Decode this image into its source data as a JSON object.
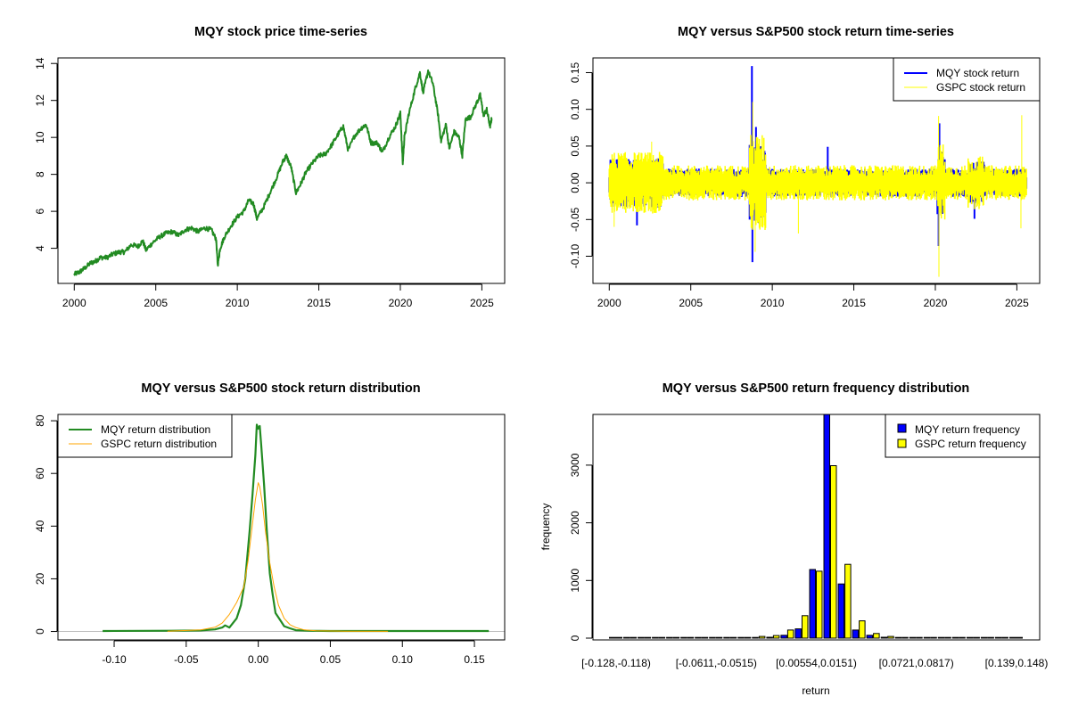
{
  "chart_data": [
    {
      "id": "price",
      "type": "line",
      "title": "MQY stock price time-series",
      "xlabel": "",
      "ylabel": "",
      "xlim": [
        1999.0,
        2026.4
      ],
      "ylim": [
        2.1,
        14.3
      ],
      "x_ticks": [
        2000,
        2005,
        2010,
        2015,
        2020,
        2025
      ],
      "x_tick_labels": [
        "2000",
        "2005",
        "2010",
        "2015",
        "2020",
        "2025"
      ],
      "y_ticks": [
        4,
        6,
        8,
        10,
        12,
        14
      ],
      "y_tick_labels": [
        "4",
        "6",
        "8",
        "10",
        "12",
        "14"
      ],
      "grid": false,
      "series": [
        {
          "name": "MQY",
          "color": "#228B22",
          "x": [
            2000.0,
            2000.3,
            2000.6,
            2001.0,
            2001.3,
            2001.6,
            2002.0,
            2002.4,
            2002.8,
            2003.1,
            2003.5,
            2003.9,
            2004.2,
            2004.4,
            2004.8,
            2005.2,
            2005.6,
            2006.0,
            2006.4,
            2006.8,
            2007.2,
            2007.6,
            2008.0,
            2008.4,
            2008.7,
            2008.8,
            2008.95,
            2009.2,
            2009.6,
            2010.0,
            2010.4,
            2010.7,
            2011.0,
            2011.2,
            2011.6,
            2012.0,
            2012.4,
            2012.8,
            2013.0,
            2013.3,
            2013.6,
            2013.9,
            2014.2,
            2014.6,
            2015.0,
            2015.4,
            2015.8,
            2016.2,
            2016.5,
            2016.8,
            2017.2,
            2017.6,
            2017.9,
            2018.2,
            2018.6,
            2018.9,
            2019.3,
            2019.7,
            2020.0,
            2020.15,
            2020.25,
            2020.5,
            2020.9,
            2021.2,
            2021.4,
            2021.7,
            2022.0,
            2022.3,
            2022.5,
            2022.8,
            2023.0,
            2023.3,
            2023.6,
            2023.8,
            2024.0,
            2024.3,
            2024.7,
            2024.9,
            2025.1,
            2025.3,
            2025.5,
            2025.6
          ],
          "y": [
            2.6,
            2.7,
            2.9,
            3.2,
            3.3,
            3.5,
            3.5,
            3.7,
            3.8,
            3.8,
            4.2,
            4.1,
            4.4,
            3.9,
            4.3,
            4.6,
            4.8,
            4.9,
            4.7,
            5.0,
            5.1,
            4.9,
            5.1,
            5.0,
            4.5,
            3.1,
            4.0,
            4.6,
            5.2,
            5.7,
            6.0,
            6.6,
            6.4,
            5.6,
            6.2,
            7.0,
            7.8,
            8.7,
            9.0,
            8.4,
            7.0,
            7.5,
            8.1,
            8.6,
            9.0,
            9.1,
            9.6,
            10.2,
            10.6,
            9.3,
            10.1,
            10.5,
            10.7,
            9.7,
            9.7,
            9.2,
            10.0,
            10.6,
            11.3,
            8.6,
            10.0,
            11.2,
            12.6,
            13.5,
            12.4,
            13.6,
            12.9,
            11.3,
            9.8,
            10.7,
            9.4,
            10.3,
            10.0,
            9.0,
            11.0,
            11.1,
            11.9,
            12.3,
            11.2,
            11.5,
            10.6,
            11.0
          ]
        }
      ]
    },
    {
      "id": "returns",
      "type": "line",
      "title": "MQY versus S&P500 stock return time-series",
      "xlabel": "",
      "ylabel": "",
      "xlim": [
        1999.0,
        2026.4
      ],
      "ylim": [
        -0.137,
        0.17
      ],
      "x_ticks": [
        2000,
        2005,
        2010,
        2015,
        2020,
        2025
      ],
      "x_tick_labels": [
        "2000",
        "2005",
        "2010",
        "2015",
        "2020",
        "2025"
      ],
      "y_ticks": [
        -0.1,
        -0.05,
        0.0,
        0.05,
        0.1,
        0.15
      ],
      "y_tick_labels": [
        "-0.10",
        "-0.05",
        "0.00",
        "0.05",
        "0.10",
        "0.15"
      ],
      "grid": false,
      "legend": {
        "position": "top-right",
        "entries": [
          "MQY stock return",
          "GSPC stock return"
        ]
      },
      "series": [
        {
          "name": "MQY stock return",
          "color": "#0000FF",
          "spikes": [
            {
              "x": 2001.7,
              "y": -0.058
            },
            {
              "x": 2008.75,
              "y": 0.159
            },
            {
              "x": 2008.78,
              "y": -0.108
            },
            {
              "x": 2009.0,
              "y": 0.076
            },
            {
              "x": 2009.2,
              "y": -0.055
            },
            {
              "x": 2013.4,
              "y": 0.049
            },
            {
              "x": 2020.2,
              "y": -0.086
            },
            {
              "x": 2020.25,
              "y": 0.081
            },
            {
              "x": 2022.4,
              "y": -0.049
            }
          ],
          "typical_amplitude": 0.02
        },
        {
          "name": "GSPC stock return",
          "color": "#FFFF00",
          "spikes": [
            {
              "x": 2000.3,
              "y": -0.06
            },
            {
              "x": 2002.6,
              "y": 0.056
            },
            {
              "x": 2008.8,
              "y": 0.11
            },
            {
              "x": 2008.95,
              "y": -0.094
            },
            {
              "x": 2011.6,
              "y": -0.069
            },
            {
              "x": 2020.2,
              "y": 0.091
            },
            {
              "x": 2020.22,
              "y": -0.128
            },
            {
              "x": 2025.3,
              "y": 0.092
            },
            {
              "x": 2025.25,
              "y": -0.062
            }
          ],
          "typical_amplitude": 0.025
        }
      ]
    },
    {
      "id": "density",
      "type": "line",
      "title": "MQY versus S&P500 stock return distribution",
      "xlabel": "",
      "ylabel": "",
      "xlim": [
        -0.139,
        0.171
      ],
      "ylim": [
        -3.2,
        82.4
      ],
      "x_ticks": [
        -0.1,
        -0.05,
        0.0,
        0.05,
        0.1,
        0.15
      ],
      "x_tick_labels": [
        "-0.10",
        "-0.05",
        "0.00",
        "0.05",
        "0.10",
        "0.15"
      ],
      "y_ticks": [
        0,
        20,
        40,
        60,
        80
      ],
      "y_tick_labels": [
        "0",
        "20",
        "40",
        "60",
        "80"
      ],
      "grid": false,
      "baseline_color": "#BEBEBE",
      "legend": {
        "position": "top-left",
        "entries": [
          "MQY return distribution",
          "GSPC return distribution"
        ]
      },
      "series": [
        {
          "name": "MQY return distribution",
          "color": "#228B22",
          "x": [
            -0.108,
            -0.06,
            -0.04,
            -0.03,
            -0.025,
            -0.023,
            -0.02,
            -0.015,
            -0.012,
            -0.009,
            -0.006,
            -0.004,
            -0.002,
            -0.001,
            0.0,
            0.001,
            0.002,
            0.004,
            0.006,
            0.008,
            0.01,
            0.012,
            0.015,
            0.018,
            0.022,
            0.026,
            0.035,
            0.05,
            0.1,
            0.16
          ],
          "y": [
            0.2,
            0.3,
            0.4,
            0.8,
            1.5,
            2.3,
            1.5,
            5.0,
            10.0,
            20.0,
            38.0,
            52.0,
            67.0,
            78.5,
            77.0,
            78.0,
            71.0,
            56.0,
            38.0,
            22.0,
            14.0,
            7.0,
            4.5,
            2.0,
            1.2,
            0.5,
            0.3,
            0.2,
            0.2,
            0.2
          ]
        },
        {
          "name": "GSPC return distribution",
          "color": "#FFA500",
          "x": [
            -0.063,
            -0.04,
            -0.03,
            -0.025,
            -0.02,
            -0.015,
            -0.01,
            -0.007,
            -0.004,
            -0.002,
            0.0,
            0.001,
            0.003,
            0.005,
            0.008,
            0.011,
            0.014,
            0.018,
            0.022,
            0.026,
            0.032,
            0.04,
            0.06,
            0.09
          ],
          "y": [
            0.1,
            0.6,
            1.6,
            3.2,
            6.5,
            11.0,
            17.0,
            27.0,
            41.0,
            50.0,
            56.5,
            55.0,
            48.0,
            38.0,
            26.0,
            17.0,
            10.0,
            5.0,
            2.6,
            1.5,
            0.6,
            0.3,
            0.1,
            0.05
          ]
        }
      ]
    },
    {
      "id": "histogram",
      "type": "bar",
      "title": "MQY versus S&P500 return frequency distribution",
      "xlabel": "return",
      "ylabel": "frequency",
      "ylim": [
        0,
        3880
      ],
      "y_ticks": [
        0,
        1000,
        2000,
        3000
      ],
      "y_tick_labels": [
        "0",
        "1000",
        "2000",
        "3000"
      ],
      "grid": false,
      "legend": {
        "position": "top-right",
        "entries": [
          "MQY return frequency",
          "GSPC return frequency"
        ]
      },
      "categories": [
        "[-0.128,-0.118)",
        "[-0.118,-0.109)",
        "[-0.109,-0.0995)",
        "[-0.0995,-0.0899)",
        "[-0.0899,-0.0803)",
        "[-0.0803,-0.0707)",
        "[-0.0707,-0.0611)",
        "[-0.0611,-0.0515)",
        "[-0.0515,-0.0419)",
        "[-0.0419,-0.0324)",
        "[-0.0324,-0.0228)",
        "[-0.0228,-0.0132)",
        "[-0.0132,-0.00362)",
        "[-0.00362,0.00554)",
        "[0.00554,0.0151)",
        "[0.0151,0.0247)",
        "[0.0247,0.0343)",
        "[0.0343,0.0438)",
        "[0.0438,0.0534)",
        "[0.0534,0.063)",
        "[0.063,0.0721)",
        "[0.0721,0.0817)",
        "[0.0817,0.0913)",
        "[0.0913,0.101)",
        "[0.101,0.11)",
        "[0.11,0.12)",
        "[0.12,0.129)",
        "[0.129,0.139)",
        "[0.139,0.148)"
      ],
      "shown_category_labels": [
        "[-0.128,-0.118)",
        "[-0.0611,-0.0515)",
        "[0.00554,0.0151)",
        "[0.0721,0.0817)",
        "[0.139,0.148)"
      ],
      "series": [
        {
          "name": "MQY return frequency",
          "color": "#0000FF",
          "values": [
            0,
            0,
            0,
            0,
            0,
            0,
            0,
            2,
            8,
            10,
            12,
            15,
            50,
            160,
            1190,
            3950,
            940,
            140,
            50,
            15,
            8,
            5,
            3,
            0,
            0,
            0,
            0,
            0,
            1
          ]
        },
        {
          "name": "GSPC return frequency",
          "color": "#FFFF00",
          "values": [
            1,
            0,
            0,
            0,
            0,
            0,
            0,
            3,
            5,
            12,
            30,
            45,
            140,
            390,
            1160,
            2990,
            1280,
            300,
            80,
            30,
            12,
            8,
            2,
            0,
            0,
            0,
            0,
            0,
            0
          ]
        }
      ]
    }
  ]
}
